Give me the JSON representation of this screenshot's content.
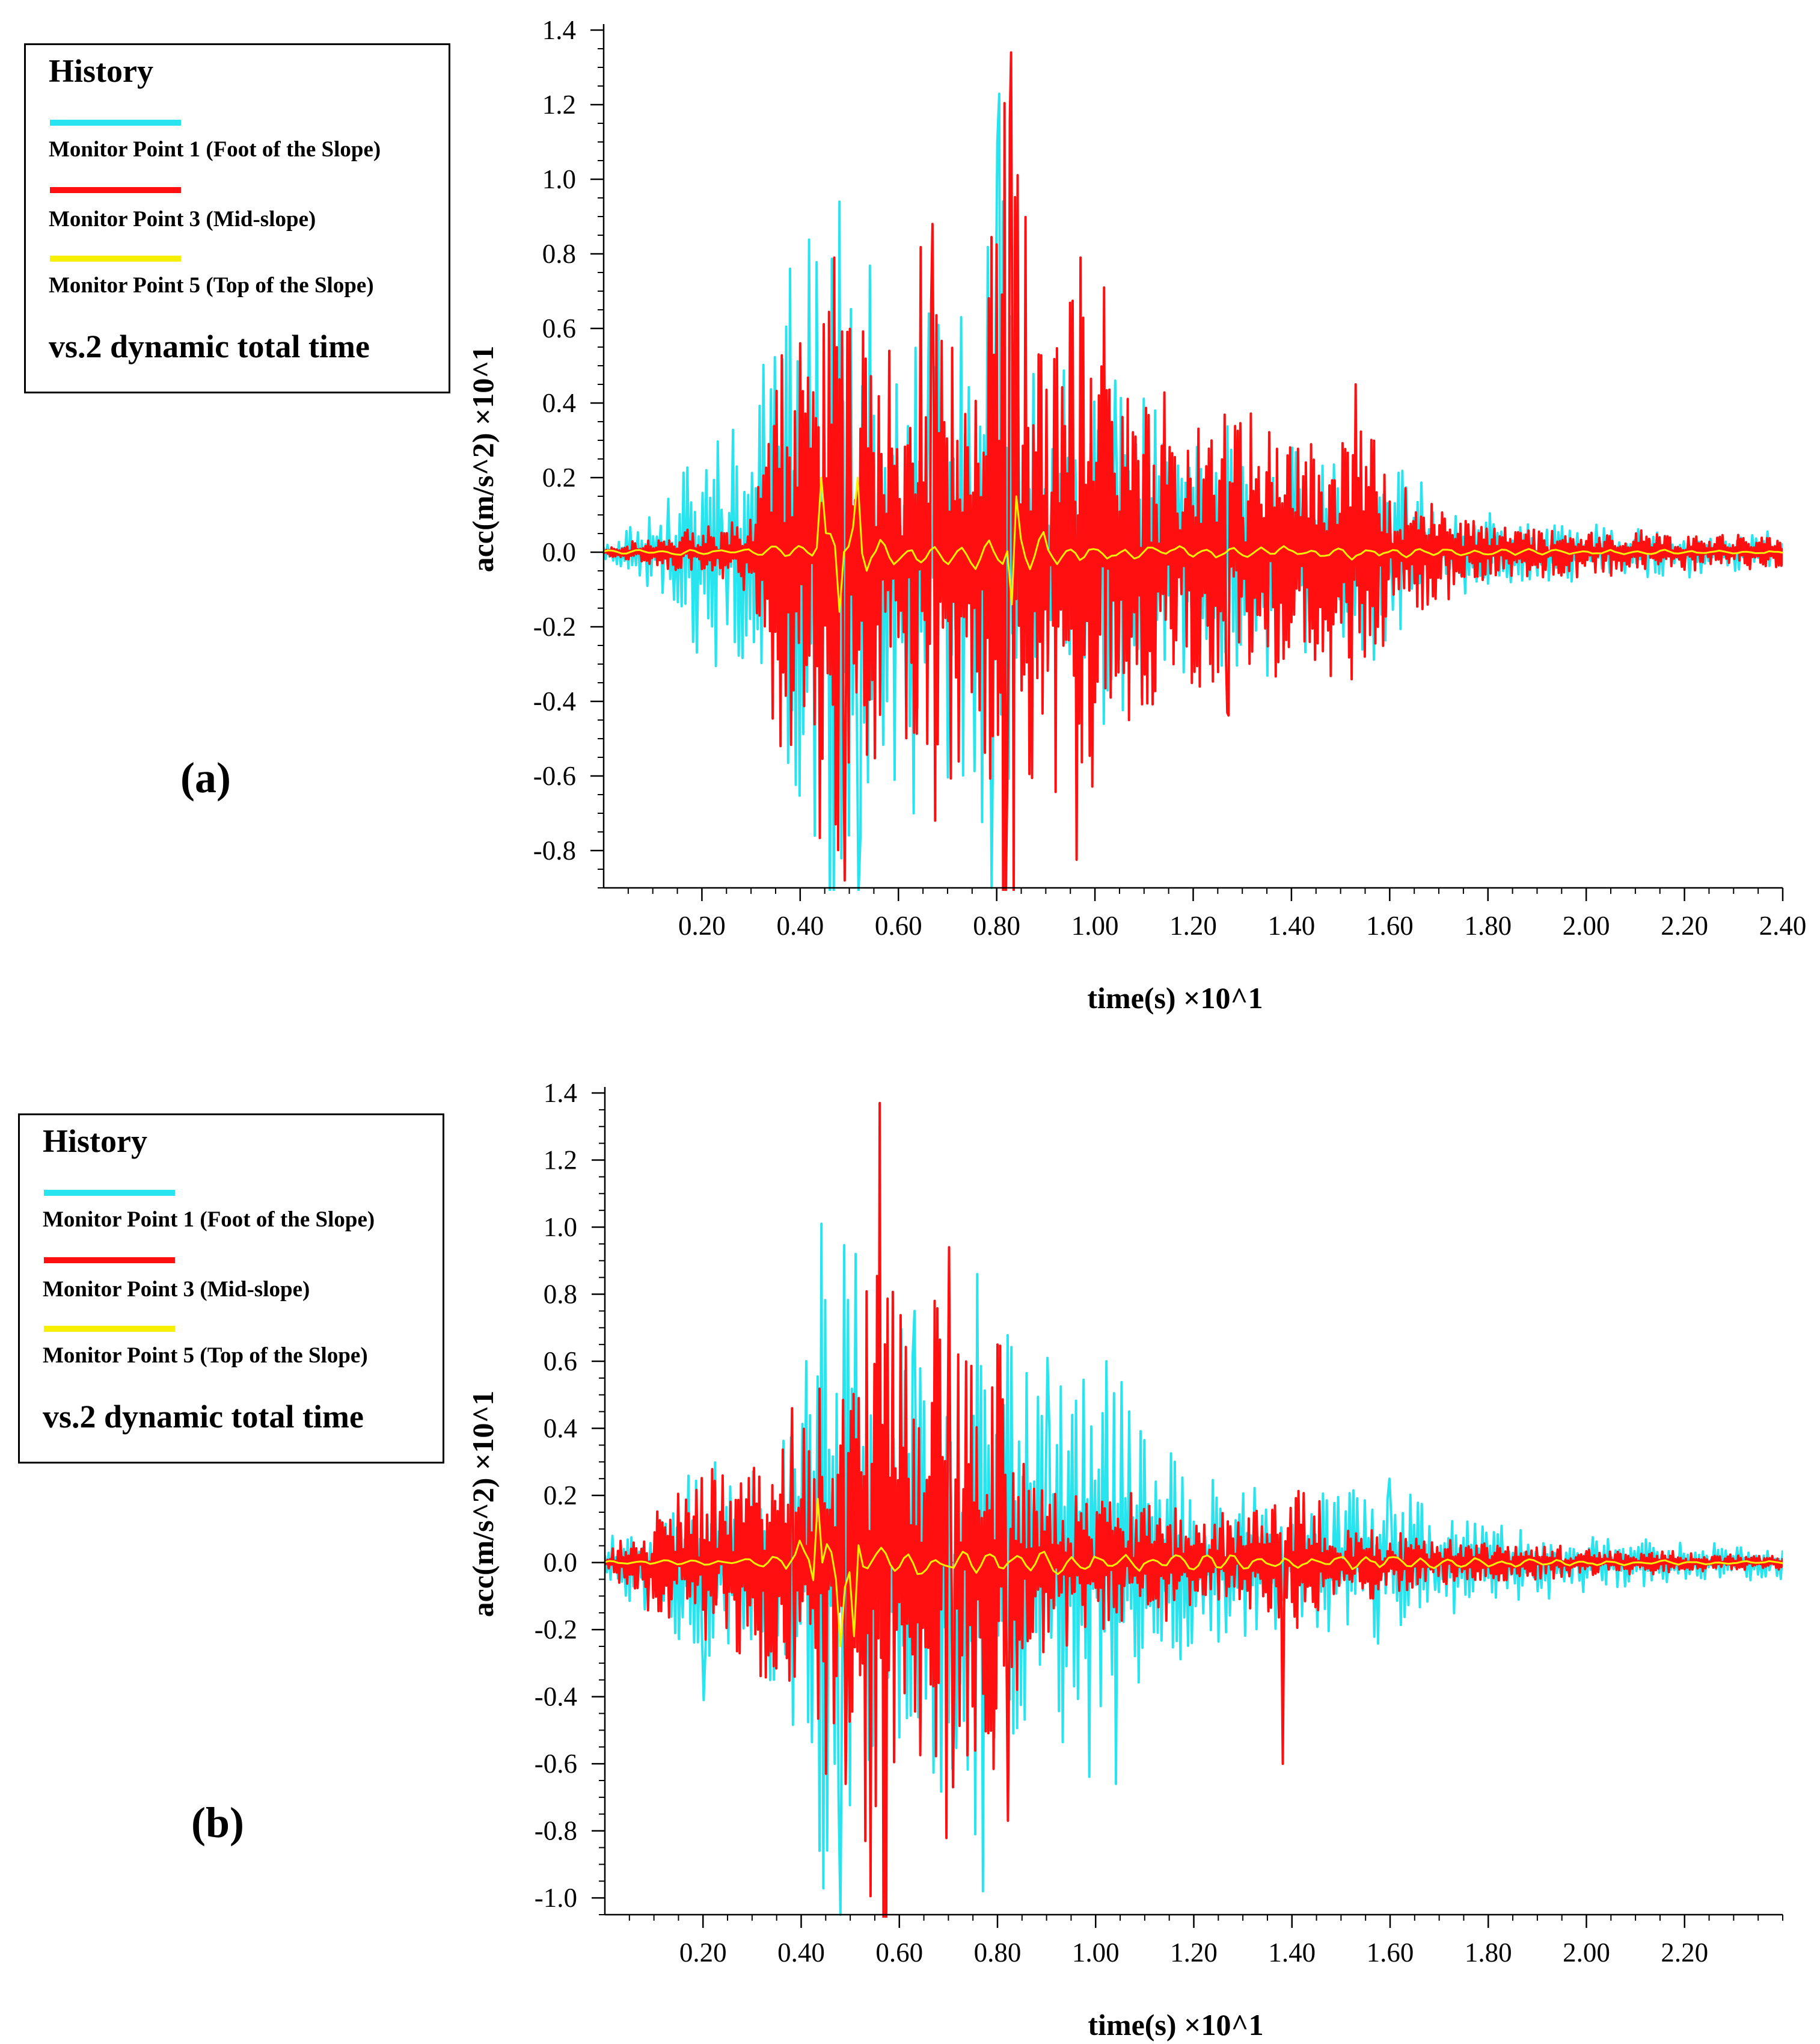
{
  "colors": {
    "cyan": "#28e4ee",
    "red": "#ff0f0f",
    "yellow": "#f6ef00",
    "axis": "#000000"
  },
  "panel_a": {
    "label": "(a)",
    "legend": {
      "title": "History",
      "items": [
        {
          "label": "Monitor Point 1 (Foot of the Slope)",
          "color": "#28e4ee"
        },
        {
          "label": "Monitor Point 3 (Mid-slope)",
          "color": "#ff0f0f"
        },
        {
          "label": "Monitor Point 5 (Top of the Slope)",
          "color": "#f6ef00"
        }
      ],
      "footer": "vs.2 dynamic total time"
    }
  },
  "panel_b": {
    "label": "(b)",
    "legend": {
      "title": "History",
      "items": [
        {
          "label": "Monitor Point 1 (Foot of the Slope)",
          "color": "#28e4ee"
        },
        {
          "label": "Monitor Point 3 (Mid-slope)",
          "color": "#ff0f0f"
        },
        {
          "label": "Monitor Point 5 (Top of the Slope)",
          "color": "#f6ef00"
        }
      ],
      "footer": "vs.2 dynamic total time"
    }
  },
  "chart_data": [
    {
      "type": "line",
      "title": "",
      "xlabel": "time(s) ×10^1",
      "ylabel": "acc(m/s^2) ×10^1",
      "xlim": [
        0,
        2.4
      ],
      "ylim": [
        -0.9,
        1.4
      ],
      "x_tick_labels": [
        "0.20",
        "0.40",
        "0.60",
        "0.80",
        "1.00",
        "1.20",
        "1.40",
        "1.60",
        "1.80",
        "2.00",
        "2.20",
        "2.40"
      ],
      "y_tick_labels": [
        "1.4",
        "1.2",
        "1.0",
        "0.8",
        "0.6",
        "0.4",
        "0.2",
        "0.0",
        "-0.2",
        "-0.4",
        "-0.6",
        "-0.8"
      ],
      "series": [
        {
          "name": "Monitor Point 1 (Foot of the Slope)",
          "color": "#28e4ee",
          "envelope": [
            [
              0.0,
              0.02
            ],
            [
              0.1,
              0.12
            ],
            [
              0.2,
              0.32
            ],
            [
              0.3,
              0.3
            ],
            [
              0.38,
              0.76
            ],
            [
              0.45,
              0.94
            ],
            [
              0.52,
              0.7
            ],
            [
              0.6,
              0.64
            ],
            [
              0.68,
              0.62
            ],
            [
              0.75,
              0.58
            ],
            [
              0.8,
              1.1
            ],
            [
              0.9,
              0.5
            ],
            [
              1.0,
              0.5
            ],
            [
              1.1,
              0.45
            ],
            [
              1.2,
              0.35
            ],
            [
              1.3,
              0.3
            ],
            [
              1.4,
              0.28
            ],
            [
              1.5,
              0.25
            ],
            [
              1.6,
              0.28
            ],
            [
              1.7,
              0.12
            ],
            [
              1.8,
              0.1
            ],
            [
              1.9,
              0.09
            ],
            [
              2.0,
              0.07
            ],
            [
              2.2,
              0.06
            ],
            [
              2.4,
              0.05
            ]
          ],
          "peaks": [
            [
              0.38,
              0.76
            ],
            [
              0.48,
              0.94
            ],
            [
              0.66,
              0.64
            ],
            [
              0.8,
              1.1
            ],
            [
              1.04,
              0.46
            ],
            [
              0.43,
              -0.76
            ],
            [
              0.52,
              -0.92
            ],
            [
              0.79,
              -0.9
            ],
            [
              0.63,
              -0.7
            ]
          ]
        },
        {
          "name": "Monitor Point 3 (Mid-slope)",
          "color": "#ff0f0f",
          "envelope": [
            [
              0.0,
              0.01
            ],
            [
              0.1,
              0.04
            ],
            [
              0.2,
              0.06
            ],
            [
              0.3,
              0.1
            ],
            [
              0.35,
              0.45
            ],
            [
              0.4,
              0.56
            ],
            [
              0.47,
              0.8
            ],
            [
              0.55,
              0.55
            ],
            [
              0.6,
              0.45
            ],
            [
              0.67,
              0.88
            ],
            [
              0.75,
              0.45
            ],
            [
              0.83,
              1.34
            ],
            [
              0.9,
              0.6
            ],
            [
              0.97,
              0.78
            ],
            [
              1.05,
              0.55
            ],
            [
              1.1,
              0.45
            ],
            [
              1.2,
              0.35
            ],
            [
              1.27,
              0.4
            ],
            [
              1.35,
              0.38
            ],
            [
              1.4,
              0.36
            ],
            [
              1.5,
              0.3
            ],
            [
              1.55,
              0.35
            ],
            [
              1.6,
              0.22
            ],
            [
              1.7,
              0.12
            ],
            [
              1.8,
              0.08
            ],
            [
              2.0,
              0.06
            ],
            [
              2.2,
              0.05
            ],
            [
              2.4,
              0.04
            ]
          ],
          "peaks": [
            [
              0.4,
              0.56
            ],
            [
              0.47,
              0.79
            ],
            [
              0.67,
              0.88
            ],
            [
              0.83,
              1.34
            ],
            [
              0.97,
              0.79
            ],
            [
              1.27,
              0.41
            ],
            [
              1.53,
              0.45
            ],
            [
              0.49,
              -0.88
            ],
            [
              0.82,
              -0.64
            ],
            [
              1.27,
              -0.43
            ],
            [
              1.07,
              -0.45
            ],
            [
              0.36,
              -0.52
            ]
          ]
        },
        {
          "name": "Monitor Point 5 (Top of the Slope)",
          "color": "#f6ef00",
          "envelope": [
            [
              0.0,
              0.01
            ],
            [
              0.3,
              0.02
            ],
            [
              0.4,
              0.05
            ],
            [
              0.45,
              0.2
            ],
            [
              0.52,
              0.2
            ],
            [
              0.6,
              0.05
            ],
            [
              0.8,
              0.1
            ],
            [
              0.85,
              0.16
            ],
            [
              1.0,
              0.05
            ],
            [
              1.2,
              0.04
            ],
            [
              1.5,
              0.04
            ],
            [
              1.8,
              0.02
            ],
            [
              2.4,
              0.01
            ]
          ],
          "peaks": [
            [
              0.44,
              0.2
            ],
            [
              0.52,
              0.2
            ],
            [
              0.48,
              -0.16
            ],
            [
              0.84,
              0.15
            ],
            [
              0.83,
              -0.14
            ]
          ]
        }
      ]
    },
    {
      "type": "line",
      "title": "",
      "xlabel": "time(s) ×10^1",
      "ylabel": "acc(m/s^2) ×10^1",
      "xlim": [
        0,
        2.4
      ],
      "ylim": [
        -1.05,
        1.4
      ],
      "x_tick_labels": [
        "0.20",
        "0.40",
        "0.60",
        "0.80",
        "1.00",
        "1.20",
        "1.40",
        "1.60",
        "1.80",
        "2.00",
        "2.20"
      ],
      "y_tick_labels": [
        "1.4",
        "1.2",
        "1.0",
        "0.8",
        "0.6",
        "0.4",
        "0.2",
        "0.0",
        "-0.2",
        "-0.4",
        "-0.6",
        "-0.8",
        "-1.0"
      ],
      "series": [
        {
          "name": "Monitor Point 1 (Foot of the Slope)",
          "color": "#28e4ee",
          "envelope": [
            [
              0.0,
              0.06
            ],
            [
              0.1,
              0.15
            ],
            [
              0.2,
              0.3
            ],
            [
              0.3,
              0.28
            ],
            [
              0.38,
              0.55
            ],
            [
              0.44,
              1.01
            ],
            [
              0.5,
              0.92
            ],
            [
              0.56,
              0.55
            ],
            [
              0.62,
              0.75
            ],
            [
              0.7,
              0.6
            ],
            [
              0.76,
              0.86
            ],
            [
              0.85,
              0.6
            ],
            [
              0.9,
              0.62
            ],
            [
              1.0,
              0.6
            ],
            [
              1.1,
              0.42
            ],
            [
              1.2,
              0.28
            ],
            [
              1.3,
              0.2
            ],
            [
              1.4,
              0.2
            ],
            [
              1.5,
              0.22
            ],
            [
              1.6,
              0.25
            ],
            [
              1.7,
              0.15
            ],
            [
              1.8,
              0.12
            ],
            [
              1.9,
              0.1
            ],
            [
              2.0,
              0.08
            ],
            [
              2.2,
              0.06
            ],
            [
              2.4,
              0.05
            ]
          ],
          "peaks": [
            [
              0.44,
              1.01
            ],
            [
              0.51,
              0.92
            ],
            [
              0.76,
              0.86
            ],
            [
              0.63,
              0.75
            ],
            [
              0.9,
              0.61
            ],
            [
              1.02,
              0.6
            ],
            [
              1.6,
              0.25
            ],
            [
              0.48,
              -1.05
            ],
            [
              0.77,
              -0.98
            ],
            [
              0.57,
              -0.63
            ],
            [
              1.04,
              -0.66
            ],
            [
              0.2,
              -0.41
            ]
          ]
        },
        {
          "name": "Monitor Point 3 (Mid-slope)",
          "color": "#ff0f0f",
          "envelope": [
            [
              0.0,
              0.02
            ],
            [
              0.1,
              0.15
            ],
            [
              0.2,
              0.25
            ],
            [
              0.3,
              0.28
            ],
            [
              0.38,
              0.4
            ],
            [
              0.44,
              0.46
            ],
            [
              0.5,
              0.5
            ],
            [
              0.56,
              1.37
            ],
            [
              0.62,
              0.55
            ],
            [
              0.7,
              0.94
            ],
            [
              0.75,
              0.55
            ],
            [
              0.8,
              0.62
            ],
            [
              0.85,
              0.3
            ],
            [
              0.9,
              0.25
            ],
            [
              1.0,
              0.2
            ],
            [
              1.1,
              0.18
            ],
            [
              1.2,
              0.15
            ],
            [
              1.3,
              0.14
            ],
            [
              1.38,
              0.22
            ],
            [
              1.45,
              0.18
            ],
            [
              1.5,
              0.12
            ],
            [
              1.6,
              0.1
            ],
            [
              1.7,
              0.06
            ],
            [
              1.8,
              0.06
            ],
            [
              2.0,
              0.04
            ],
            [
              2.2,
              0.03
            ],
            [
              2.4,
              0.02
            ]
          ],
          "peaks": [
            [
              0.56,
              1.37
            ],
            [
              0.7,
              0.94
            ],
            [
              0.72,
              0.62
            ],
            [
              0.8,
              0.65
            ],
            [
              0.38,
              0.46
            ],
            [
              1.38,
              0.21
            ],
            [
              0.82,
              -0.77
            ],
            [
              0.71,
              -0.67
            ],
            [
              1.38,
              -0.6
            ],
            [
              0.49,
              -0.66
            ],
            [
              0.45,
              -0.63
            ]
          ]
        },
        {
          "name": "Monitor Point 5 (Top of the Slope)",
          "color": "#f6ef00",
          "envelope": [
            [
              0.0,
              0.01
            ],
            [
              0.3,
              0.02
            ],
            [
              0.35,
              0.05
            ],
            [
              0.42,
              0.18
            ],
            [
              0.5,
              0.2
            ],
            [
              0.55,
              0.15
            ],
            [
              0.6,
              0.1
            ],
            [
              0.8,
              0.08
            ],
            [
              1.0,
              0.07
            ],
            [
              1.2,
              0.06
            ],
            [
              1.4,
              0.06
            ],
            [
              1.6,
              0.05
            ],
            [
              1.8,
              0.03
            ],
            [
              2.0,
              0.02
            ],
            [
              2.4,
              0.01
            ]
          ],
          "peaks": [
            [
              0.43,
              0.19
            ],
            [
              0.51,
              0.15
            ],
            [
              0.48,
              -0.25
            ],
            [
              0.51,
              -0.22
            ]
          ]
        }
      ]
    }
  ]
}
